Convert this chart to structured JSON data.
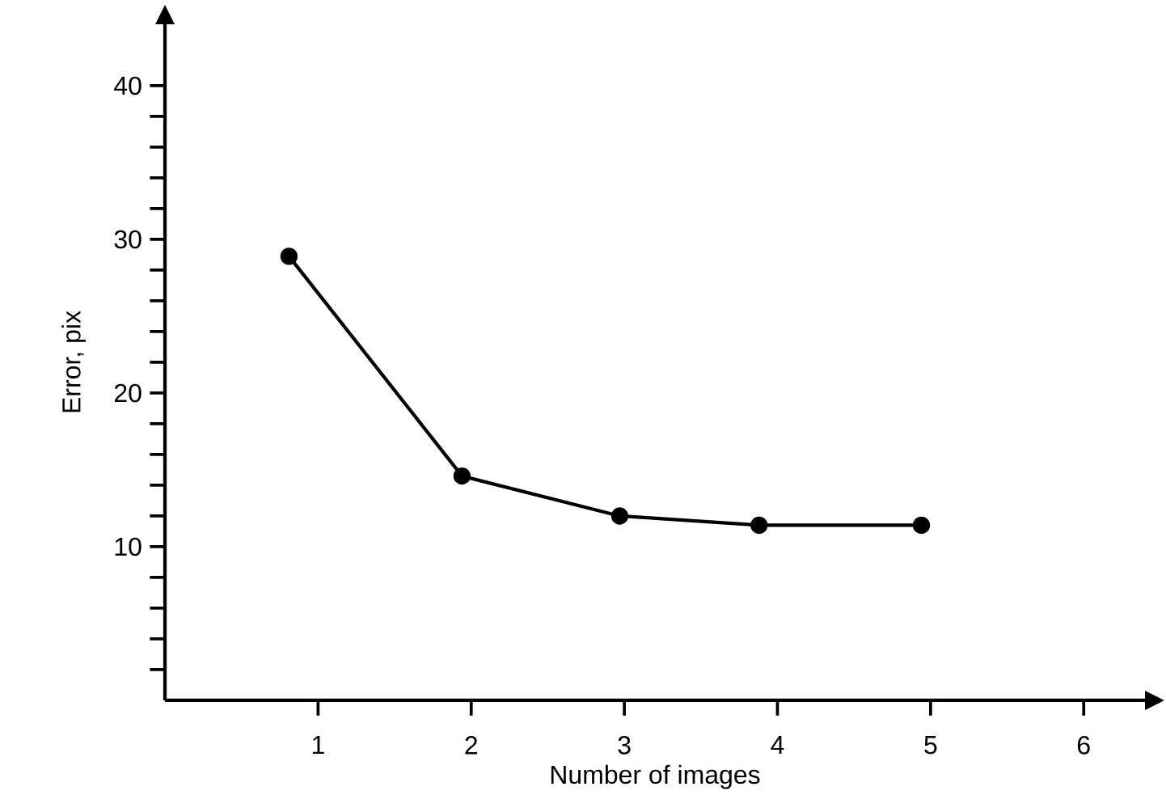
{
  "chart_data": {
    "type": "line",
    "xlabel": "Number of images",
    "ylabel": "Error, pix",
    "x": [
      0.81,
      1.94,
      2.97,
      3.88,
      4.94
    ],
    "series": [
      {
        "color": "#000000",
        "values": [
          28.9,
          14.6,
          12.0,
          11.4,
          11.4
        ]
      }
    ],
    "xlim": [
      0,
      6.4
    ],
    "ylim": [
      0,
      44
    ],
    "xticks": [
      1,
      2,
      3,
      4,
      5,
      6
    ],
    "yticks": [
      {
        "value": 2,
        "label": null
      },
      {
        "value": 4,
        "label": null
      },
      {
        "value": 6,
        "label": null
      },
      {
        "value": 8,
        "label": null
      },
      10,
      {
        "value": 12,
        "label": null
      },
      {
        "value": 14,
        "label": null
      },
      {
        "value": 16,
        "label": null
      },
      {
        "value": 18,
        "label": null
      },
      20,
      {
        "value": 22,
        "label": null
      },
      {
        "value": 24,
        "label": null
      },
      {
        "value": 26,
        "label": null
      },
      {
        "value": 28,
        "label": null
      },
      30,
      {
        "value": 32,
        "label": null
      },
      {
        "value": 34,
        "label": null
      },
      {
        "value": 36,
        "label": null
      },
      {
        "value": 38,
        "label": null
      },
      40
    ],
    "grid": false,
    "marker": "circle",
    "line_style": "solid"
  }
}
